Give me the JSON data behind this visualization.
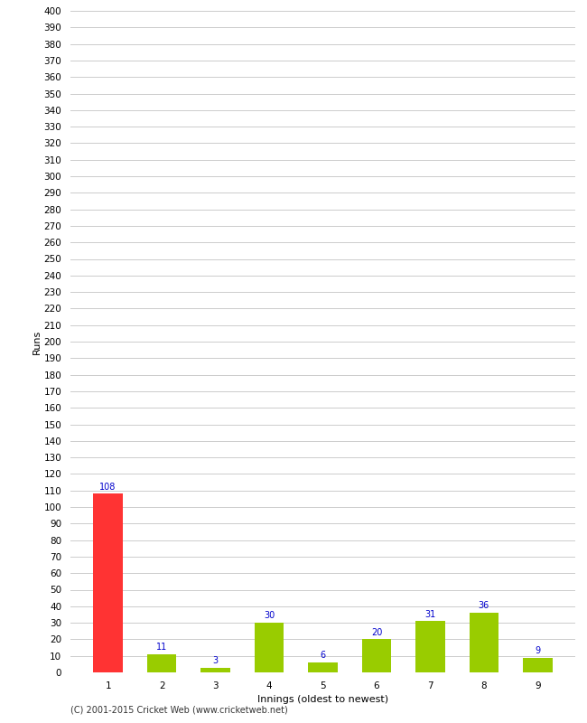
{
  "categories": [
    1,
    2,
    3,
    4,
    5,
    6,
    7,
    8,
    9
  ],
  "values": [
    108,
    11,
    3,
    30,
    6,
    20,
    31,
    36,
    9
  ],
  "bar_colors": [
    "#ff3333",
    "#99cc00",
    "#99cc00",
    "#99cc00",
    "#99cc00",
    "#99cc00",
    "#99cc00",
    "#99cc00",
    "#99cc00"
  ],
  "xlabel": "Innings (oldest to newest)",
  "ylabel": "Runs",
  "ylim": [
    0,
    400
  ],
  "label_color": "#0000cc",
  "label_fontsize": 7,
  "axis_fontsize": 8,
  "tick_fontsize": 7.5,
  "footer": "(C) 2001-2015 Cricket Web (www.cricketweb.net)",
  "background_color": "#ffffff",
  "grid_color": "#cccccc",
  "bar_width": 0.55
}
